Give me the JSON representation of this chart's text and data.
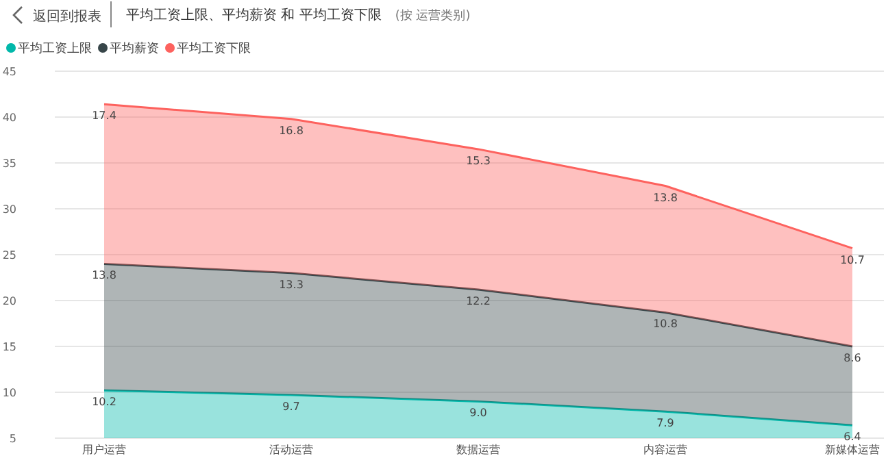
{
  "chart_data": {
    "type": "area",
    "stacked": true,
    "title": "平均工资上限、平均薪资 和 平均工资下限",
    "subtitle": "(按 运营类别)",
    "annotations": [
      "返回到报表"
    ],
    "categories": [
      "用户运营",
      "活动运营",
      "数据运营",
      "内容运营",
      "新媒体运营"
    ],
    "series": [
      {
        "name": "平均工资上限",
        "color": "#01b8aa",
        "values": [
          10.2,
          9.7,
          9.0,
          7.9,
          6.4
        ],
        "value_labels": [
          "10.2",
          "9.7",
          "9.0",
          "7.9",
          "6.4"
        ]
      },
      {
        "name": "平均薪资",
        "color": "#374649",
        "values": [
          13.8,
          13.3,
          12.2,
          10.8,
          8.6
        ],
        "value_labels": [
          "13.8",
          "13.3",
          "12.2",
          "10.8",
          "8.6"
        ]
      },
      {
        "name": "平均工资下限",
        "color": "#fd625e",
        "values": [
          17.4,
          16.8,
          15.3,
          13.8,
          10.7
        ],
        "value_labels": [
          "17.4",
          "16.8",
          "15.3",
          "13.8",
          "10.7"
        ]
      }
    ],
    "ylim": [
      5,
      45
    ],
    "yticks": [
      5,
      10,
      15,
      20,
      25,
      30,
      35,
      40,
      45
    ],
    "grid": "y",
    "legend": "top left"
  }
}
